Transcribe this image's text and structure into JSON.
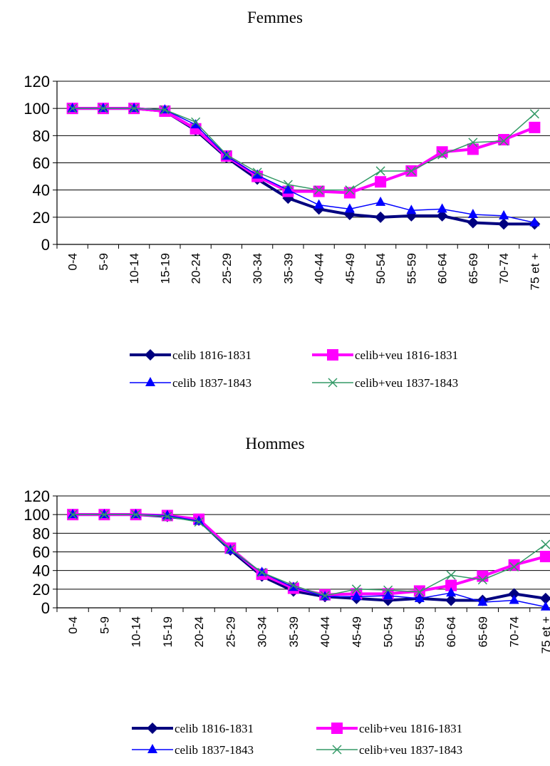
{
  "chart_data": [
    {
      "type": "line",
      "title": "Femmes",
      "categories": [
        "0-4",
        "5-9",
        "10-14",
        "15-19",
        "20-24",
        "25-29",
        "30-34",
        "35-39",
        "40-44",
        "45-49",
        "50-54",
        "55-59",
        "60-64",
        "65-69",
        "70-74",
        "75 et +"
      ],
      "ylim": [
        0,
        120
      ],
      "yticks": [
        0,
        20,
        40,
        60,
        80,
        100,
        120
      ],
      "grid": true,
      "legend_position": "bottom",
      "series": [
        {
          "name": "celib 1816-1831",
          "color": "#00007f",
          "marker": "diamond",
          "values": [
            100,
            100,
            100,
            98,
            84,
            64,
            48,
            34,
            26,
            22,
            20,
            21,
            21,
            16,
            15,
            15
          ]
        },
        {
          "name": "celib+veu 1816-1831",
          "color": "#ff00ff",
          "marker": "square",
          "values": [
            100,
            100,
            100,
            98,
            85,
            65,
            50,
            39,
            39,
            38,
            46,
            54,
            68,
            70,
            77,
            86
          ]
        },
        {
          "name": "celib 1837-1843",
          "color": "#0000ff",
          "marker": "triangle",
          "values": [
            100,
            100,
            100,
            99,
            88,
            65,
            51,
            40,
            29,
            26,
            31,
            25,
            26,
            22,
            21,
            16
          ]
        },
        {
          "name": "celib+veu 1837-1843",
          "color": "#339966",
          "marker": "x",
          "values": [
            100,
            100,
            100,
            99,
            90,
            66,
            53,
            44,
            40,
            40,
            54,
            54,
            66,
            75,
            76,
            96
          ]
        }
      ]
    },
    {
      "type": "line",
      "title": "Hommes",
      "categories": [
        "0-4",
        "5-9",
        "10-14",
        "15-19",
        "20-24",
        "25-29",
        "30-34",
        "35-39",
        "40-44",
        "45-49",
        "50-54",
        "55-59",
        "60-64",
        "65-69",
        "70-74",
        "75 et +"
      ],
      "ylim": [
        0,
        120
      ],
      "yticks": [
        0,
        20,
        40,
        60,
        80,
        100,
        120
      ],
      "grid": true,
      "legend_position": "bottom",
      "series": [
        {
          "name": "celib 1816-1831",
          "color": "#00007f",
          "marker": "diamond",
          "values": [
            100,
            100,
            100,
            98,
            94,
            62,
            34,
            18,
            12,
            10,
            8,
            10,
            8,
            8,
            15,
            10
          ]
        },
        {
          "name": "celib+veu 1816-1831",
          "color": "#ff00ff",
          "marker": "square",
          "values": [
            100,
            100,
            100,
            99,
            95,
            64,
            36,
            21,
            14,
            15,
            15,
            18,
            24,
            34,
            46,
            55
          ]
        },
        {
          "name": "celib 1837-1843",
          "color": "#0000ff",
          "marker": "triangle",
          "values": [
            100,
            100,
            100,
            99,
            93,
            62,
            38,
            22,
            12,
            12,
            13,
            10,
            16,
            6,
            8,
            1
          ]
        },
        {
          "name": "celib+veu 1837-1843",
          "color": "#339966",
          "marker": "x",
          "values": [
            100,
            100,
            100,
            98,
            92,
            63,
            38,
            24,
            13,
            20,
            19,
            17,
            35,
            30,
            44,
            68
          ]
        }
      ]
    }
  ]
}
